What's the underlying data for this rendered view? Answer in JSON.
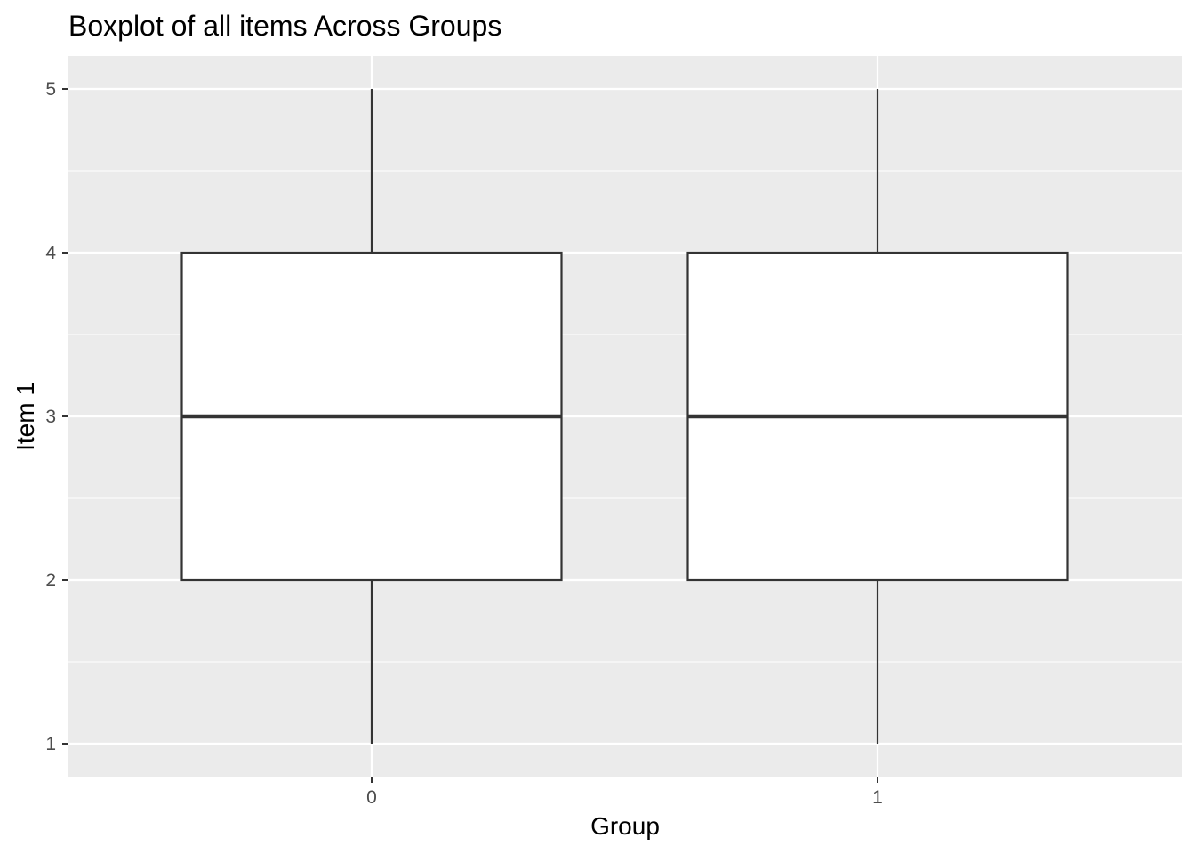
{
  "chart_data": {
    "type": "boxplot",
    "title": "Boxplot of all items Across Groups",
    "xlabel": "Group",
    "ylabel": "Item 1",
    "categories": [
      "0",
      "1"
    ],
    "boxes": [
      {
        "group": "0",
        "min": 1,
        "q1": 2,
        "median": 3,
        "q3": 4,
        "max": 5
      },
      {
        "group": "1",
        "min": 1,
        "q1": 2,
        "median": 3,
        "q3": 4,
        "max": 5
      }
    ],
    "y_ticks": [
      1,
      2,
      3,
      4,
      5
    ],
    "ylim": [
      0.8,
      5.2
    ],
    "grid": true,
    "legend": "none",
    "colors": {
      "panel_background": "#ebebeb",
      "grid_line": "#ffffff",
      "box_fill": "#ffffff",
      "box_line": "#333333",
      "tick_mark": "#333333"
    }
  }
}
